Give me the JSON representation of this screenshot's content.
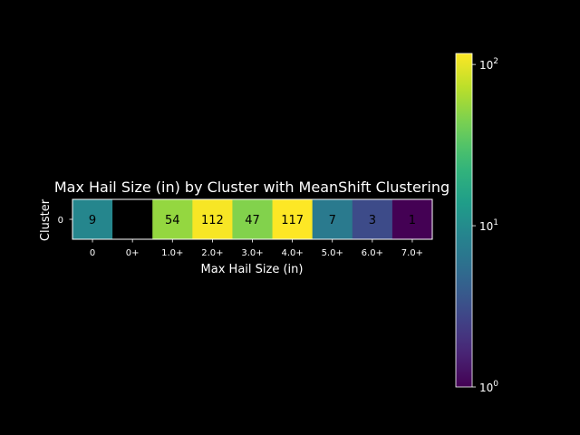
{
  "chart_data": {
    "type": "heatmap",
    "title": "Max Hail Size (in) by Cluster with MeanShift Clustering",
    "xlabel": "Max Hail Size (in)",
    "ylabel": "Cluster",
    "x_categories": [
      "0",
      "0+",
      "1.0+",
      "2.0+",
      "3.0+",
      "4.0+",
      "5.0+",
      "6.0+",
      "7.0+"
    ],
    "y_categories": [
      "0"
    ],
    "values": [
      [
        9,
        null,
        54,
        112,
        47,
        117,
        7,
        3,
        1
      ]
    ],
    "colorbar": {
      "scale": "log",
      "range": [
        1,
        117
      ],
      "tick_values": [
        1,
        10,
        100
      ],
      "tick_labels": [
        [
          "10",
          "0"
        ],
        [
          "10",
          "1"
        ],
        [
          "10",
          "2"
        ]
      ]
    },
    "background": "#000000",
    "text_color": "#ffffff",
    "cell_text_color": "#000000",
    "colormap": "viridis"
  }
}
